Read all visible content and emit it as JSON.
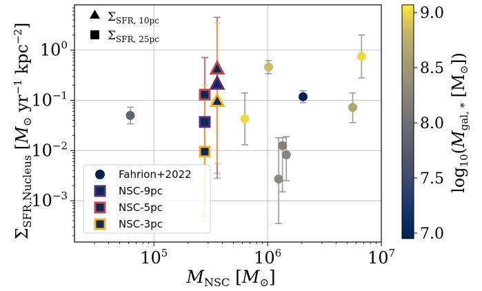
{
  "chart_data": {
    "type": "scatter",
    "xlabel": "M_NSC [M_⊙]",
    "ylabel": "Σ_SFR,Nucleus [M_⊙ yr^-1 kpc^-2]",
    "xscale": "log",
    "yscale": "log",
    "xlim": [
      20000,
      10000000
    ],
    "ylim": [
      0.00015,
      8
    ],
    "x_ticks": [
      {
        "value": 100000,
        "base": "10",
        "exp": "5"
      },
      {
        "value": 1000000,
        "base": "10",
        "exp": "6"
      },
      {
        "value": 10000000,
        "base": "10",
        "exp": "7"
      }
    ],
    "y_ticks": [
      {
        "value": 0.001,
        "base": "10",
        "exp": "−3"
      },
      {
        "value": 0.01,
        "base": "10",
        "exp": "−2"
      },
      {
        "value": 0.1,
        "base": "10",
        "exp": "−1"
      },
      {
        "value": 1,
        "base": "10",
        "exp": "0"
      }
    ],
    "grid": true,
    "colorbar": {
      "label": "log10(M_gal,* [M_⊙])",
      "range": [
        6.95,
        9.07
      ],
      "colormap": "cividis",
      "ticks": [
        "7.0",
        "7.5",
        "8.0",
        "8.5",
        "9.0"
      ]
    },
    "annotation": {
      "triangle_label": "Σ_SFR, 10pc",
      "square_label": "Σ_SFR, 25pc"
    },
    "legend": {
      "position": "lower-left",
      "entries": [
        {
          "label": "Fahrion+2022",
          "marker": "circle",
          "edge": "#00224e"
        },
        {
          "label": "NSC-9pc",
          "marker": "square",
          "edge": "#5b2a7a"
        },
        {
          "label": "NSC-5pc",
          "marker": "square",
          "edge": "#c2474f"
        },
        {
          "label": "NSC-3pc",
          "marker": "square",
          "edge": "#f0b429"
        }
      ]
    },
    "series": [
      {
        "name": "Fahrion+2022",
        "marker": "circle",
        "points": [
          {
            "x": 62000,
            "y": 0.05,
            "yerr_low": 0.034,
            "yerr_high": 0.073,
            "c": 7.85
          },
          {
            "x": 2050000,
            "y": 0.118,
            "yerr_low": 0.09,
            "yerr_high": 0.155,
            "c": 6.97
          },
          {
            "x": 1020000,
            "y": 0.46,
            "yerr_low": 0.34,
            "yerr_high": 0.62,
            "c": 8.85
          },
          {
            "x": 630000,
            "y": 0.043,
            "yerr_low": 0.013,
            "yerr_high": 0.14,
            "c": 9.0
          },
          {
            "x": 6700000,
            "y": 0.75,
            "yerr_low": 0.28,
            "yerr_high": 2.0,
            "c": 9.0
          },
          {
            "x": 5600000,
            "y": 0.072,
            "yerr_low": 0.036,
            "yerr_high": 0.14,
            "c": 8.65
          },
          {
            "x": 1350000,
            "y": 0.0125,
            "yerr_low": 0.0015,
            "yerr_high": 0.018,
            "c": 8.2
          },
          {
            "x": 1460000,
            "y": 0.0082,
            "yerr_low": 0.0025,
            "yerr_high": 0.019,
            "c": 8.25
          },
          {
            "x": 1250000,
            "y": 0.0027,
            "yerr_low": 0.00035,
            "yerr_high": 0.018,
            "c": 8.3
          }
        ]
      },
      {
        "name": "NSC-9pc",
        "face": "#0b2a55",
        "edge": "#5b2a7a",
        "err_color": "#7b4a9e",
        "points": [
          {
            "x": 280000,
            "y": 0.037,
            "marker": "square",
            "yerr_low": 0.0005,
            "yerr_high": 0.72
          },
          {
            "x": 360000,
            "y": 0.22,
            "marker": "triangle",
            "yerr_low": 0.0028,
            "yerr_high": 4.5
          }
        ]
      },
      {
        "name": "NSC-5pc",
        "face": "#0b2a55",
        "edge": "#c2474f",
        "err_color": "#c56a5a",
        "points": [
          {
            "x": 280000,
            "y": 0.13,
            "marker": "square",
            "yerr_low": 0.0004,
            "yerr_high": 0.7
          },
          {
            "x": 360000,
            "y": 0.44,
            "marker": "triangle",
            "yerr_low": 0.0035,
            "yerr_high": 4.5
          }
        ]
      },
      {
        "name": "NSC-3pc",
        "face": "#0b2a55",
        "edge": "#f0b429",
        "err_color": "#e9b84a",
        "points": [
          {
            "x": 280000,
            "y": 0.0095,
            "marker": "square",
            "yerr_low": 0.0004,
            "yerr_high": 0.2
          },
          {
            "x": 360000,
            "y": 0.1,
            "marker": "triangle",
            "yerr_low": 0.0055,
            "yerr_high": 3.5
          }
        ]
      }
    ]
  }
}
